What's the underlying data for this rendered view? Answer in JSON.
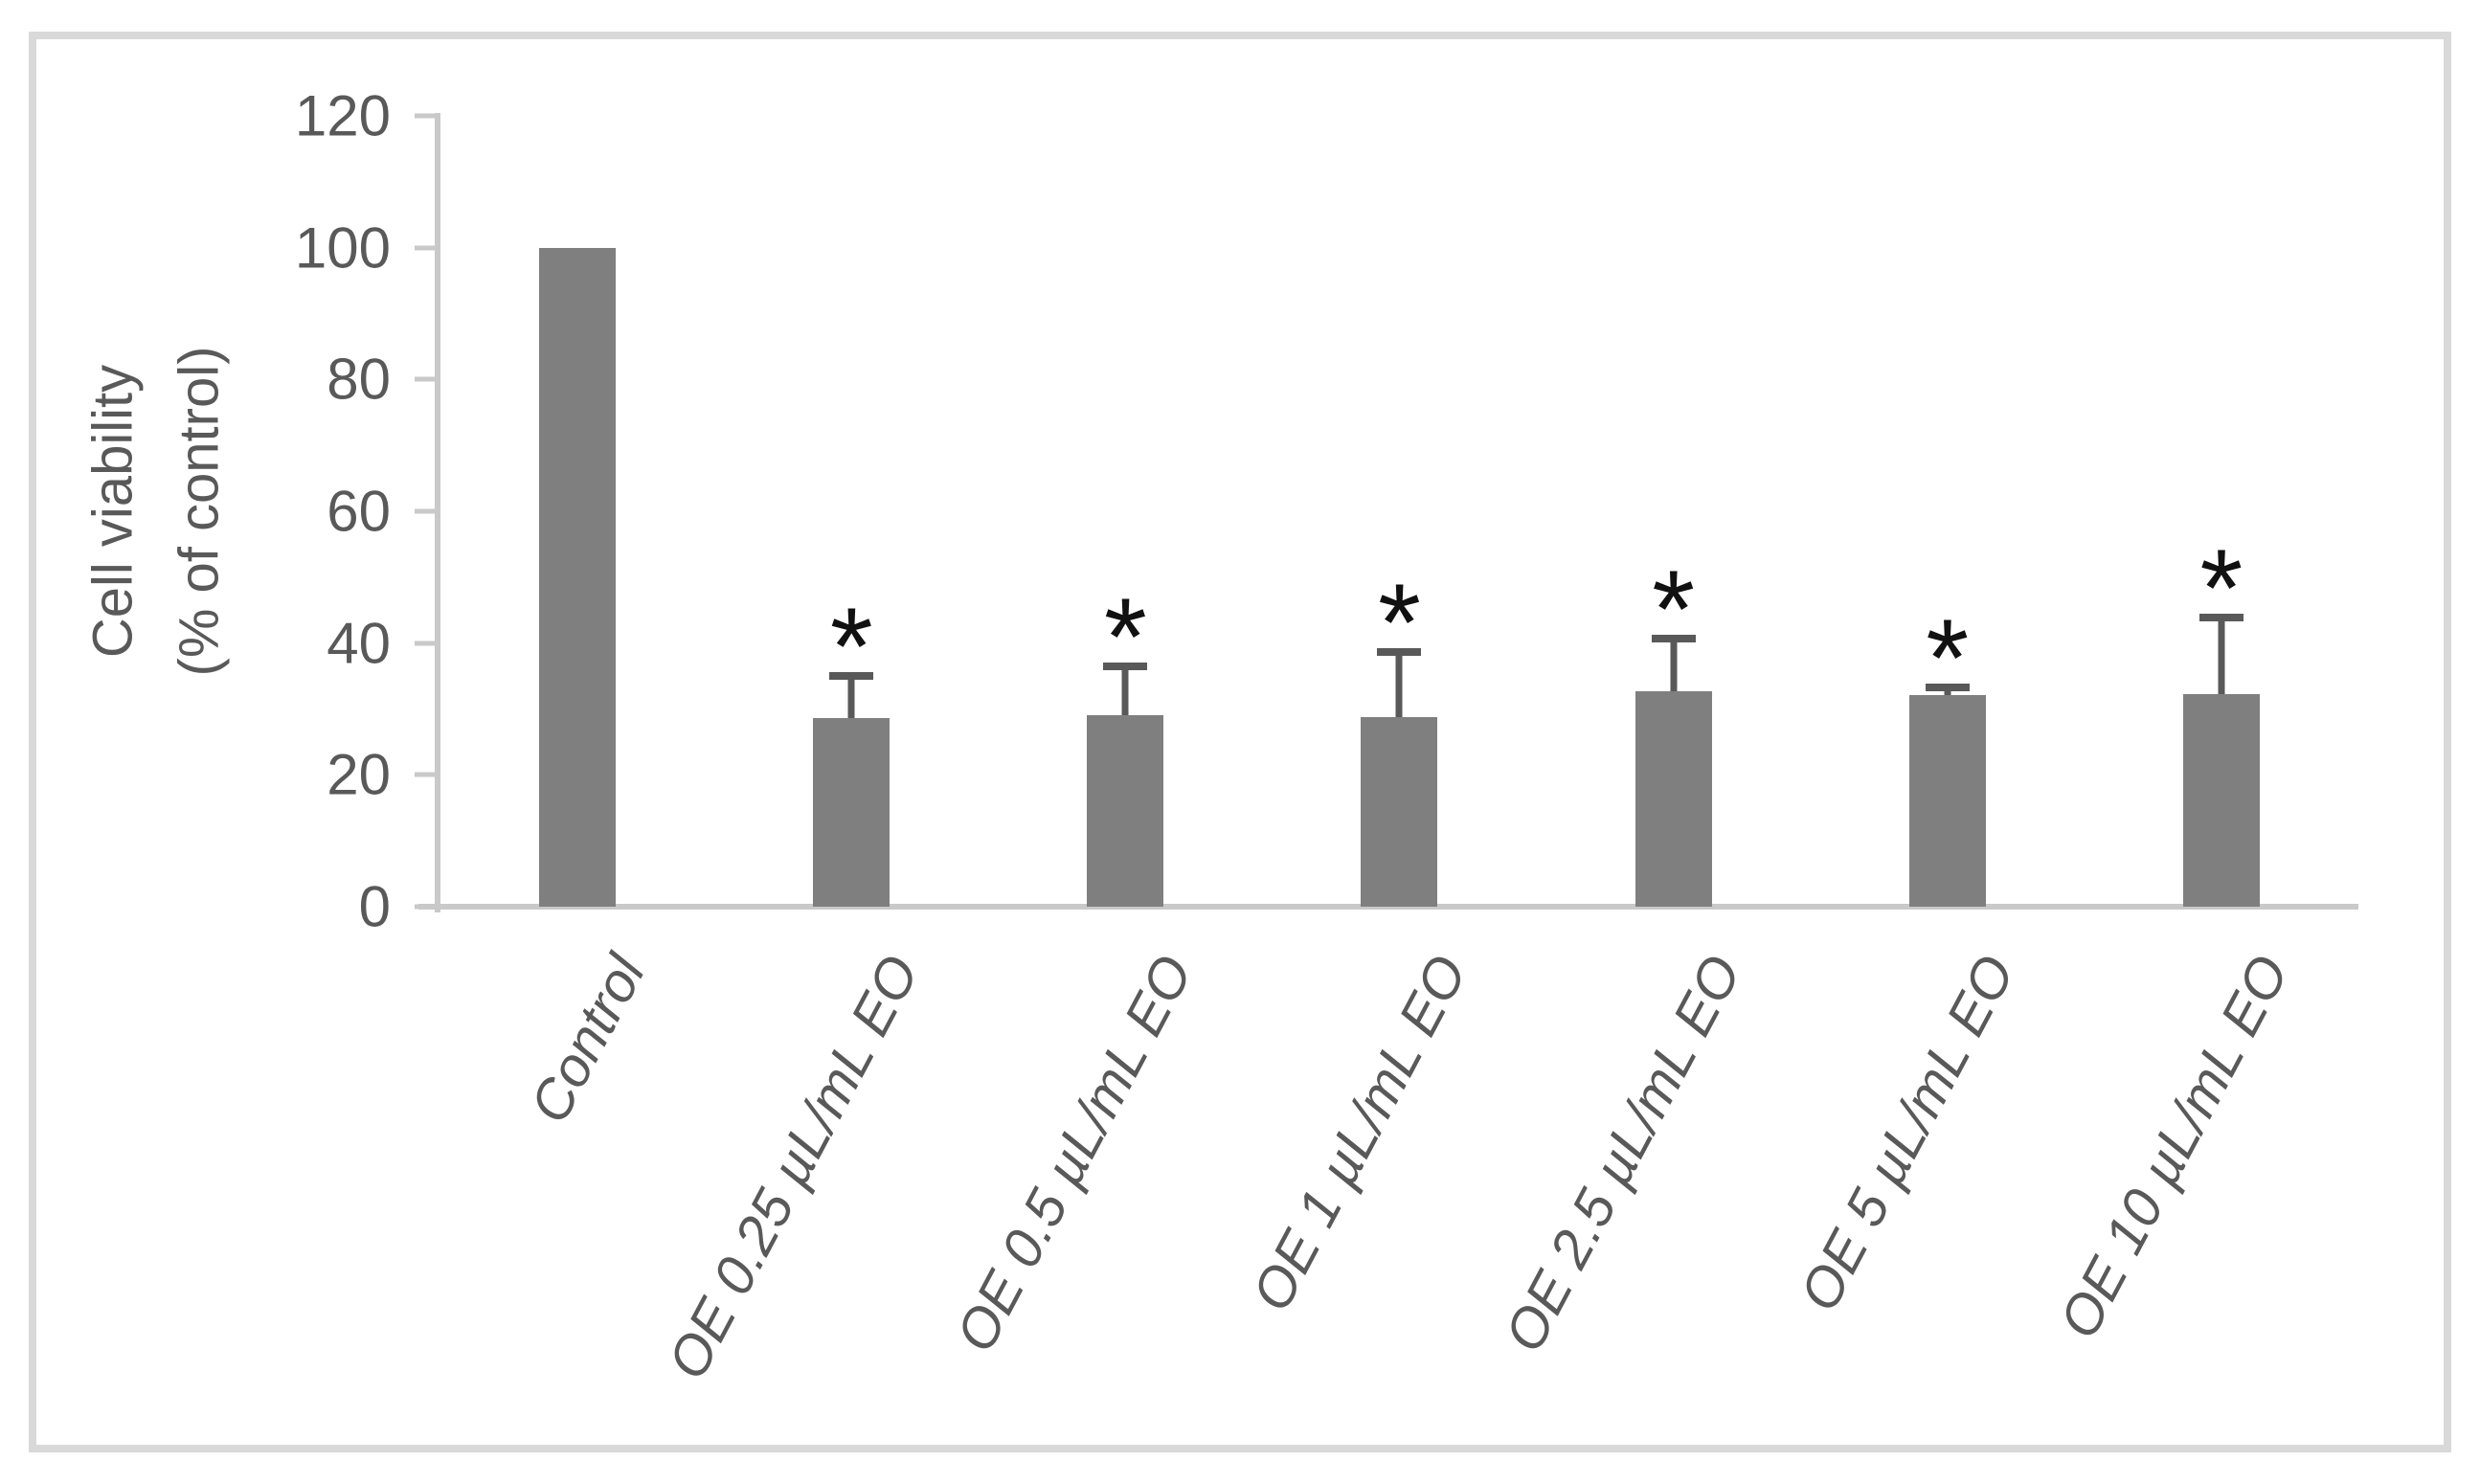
{
  "chart_data": {
    "type": "bar",
    "title": "",
    "ylabel_lines": [
      "Cell viability",
      "(% of control)"
    ],
    "xlabel": "",
    "ylim": [
      0,
      120
    ],
    "yticks": [
      0,
      20,
      40,
      60,
      80,
      100,
      120
    ],
    "grid": false,
    "legend": false,
    "categories": [
      "Control",
      "OE 0.25 µL/mL EO",
      "OE 0.5 µL/mL EO",
      "OE 1 µL/mL EO",
      "OE 2.5 µL/mL EO",
      "OE 5 µL/mL EO",
      "OE 10 µL/mL EO"
    ],
    "series": [
      {
        "name": "Cell viability (% of control)",
        "values": [
          100,
          28.6,
          29.1,
          28.7,
          32.7,
          32.1,
          32.3
        ],
        "errors_plus": [
          0,
          7.0,
          8.0,
          10.6,
          8.5,
          1.8,
          12.1
        ],
        "significance": [
          "",
          "*",
          "*",
          "*",
          "*",
          "*",
          "*"
        ]
      }
    ],
    "colors": {
      "bar_fill": "#7f7f7f",
      "error_bar": "#595959",
      "axis_line": "#c9c9c9",
      "text": "#595959",
      "asterisk": "#111111",
      "frame_border": "#d9d9d9",
      "background": "#ffffff"
    }
  }
}
